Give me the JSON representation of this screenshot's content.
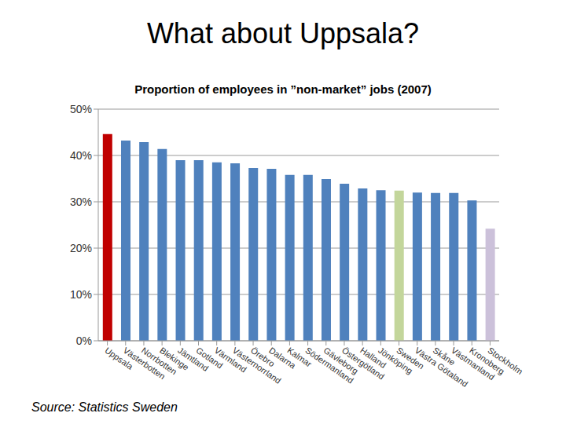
{
  "chart_data": {
    "type": "bar",
    "title": "What about Uppsala?",
    "subtitle": "Proportion of employees in ”non-market” jobs (2007)",
    "annotations": [
      "Source: Statistics Sweden"
    ],
    "categories": [
      "Uppsala",
      "Västerbotten",
      "Norrbotten",
      "Blekinge",
      "Jämtland",
      "Gotland",
      "Värmland",
      "Västernorrland",
      "Örebro",
      "Dalarna",
      "Kalmar",
      "Södermanland",
      "Gävleborg",
      "Östergötland",
      "Halland",
      "Jönköping",
      "Sweden",
      "Västra Götaland",
      "Skåne",
      "Västmanland",
      "Kronoberg",
      "Stockholm"
    ],
    "values": [
      44.6,
      43.2,
      42.9,
      41.4,
      39.0,
      39.0,
      38.5,
      38.3,
      37.3,
      37.1,
      35.8,
      35.8,
      34.9,
      33.9,
      32.9,
      32.5,
      32.4,
      32.0,
      31.9,
      31.9,
      30.3,
      24.2
    ],
    "colors": [
      "#c00000",
      "#4f81bd",
      "#4f81bd",
      "#4f81bd",
      "#4f81bd",
      "#4f81bd",
      "#4f81bd",
      "#4f81bd",
      "#4f81bd",
      "#4f81bd",
      "#4f81bd",
      "#4f81bd",
      "#4f81bd",
      "#4f81bd",
      "#4f81bd",
      "#4f81bd",
      "#c3d69b",
      "#4f81bd",
      "#4f81bd",
      "#4f81bd",
      "#4f81bd",
      "#ccc1da"
    ],
    "ylim": [
      0,
      50
    ],
    "yticks": [
      {
        "value": 0,
        "label": "0%"
      },
      {
        "value": 10,
        "label": "10%"
      },
      {
        "value": 20,
        "label": "20%"
      },
      {
        "value": 30,
        "label": "30%"
      },
      {
        "value": 40,
        "label": "40%"
      },
      {
        "value": 50,
        "label": "50%"
      }
    ],
    "grid": true
  }
}
